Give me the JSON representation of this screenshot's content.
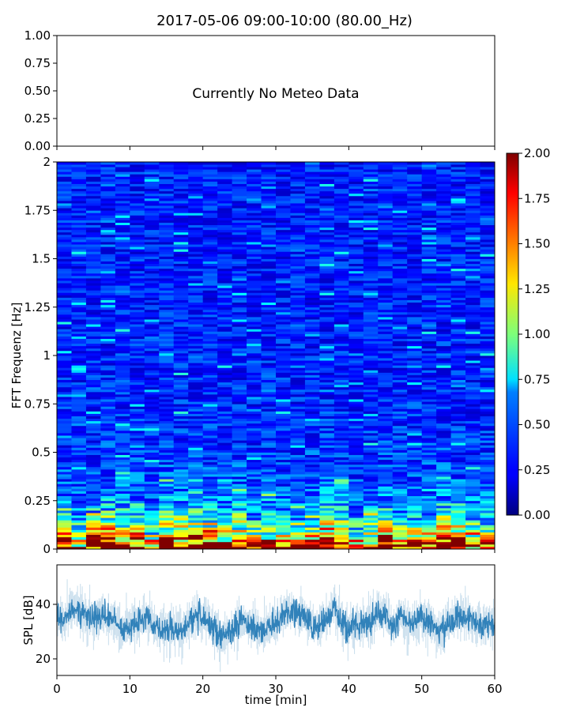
{
  "chart_data": [
    {
      "type": "line",
      "panel": "meteo",
      "title": "2017-05-06 09:00-10:00 (80.00_Hz)",
      "annotation": "Currently No Meteo Data",
      "ylim": [
        0,
        1
      ],
      "yticks": [
        "0.00",
        "0.25",
        "0.50",
        "0.75",
        "1.00"
      ],
      "xlim": [
        0,
        60
      ]
    },
    {
      "type": "heatmap",
      "panel": "spectrogram",
      "ylabel": "FFT Frequenz [Hz]",
      "ylim": [
        0,
        2
      ],
      "yticks": [
        "0",
        "0.25",
        "0.5",
        "0.75",
        "1",
        "1.25",
        "1.5",
        "1.75",
        "2"
      ],
      "xlim": [
        0,
        60
      ],
      "time_bins": 30,
      "freq_bins": 160,
      "colormap": "jet",
      "colorbar": {
        "range": [
          0,
          2
        ],
        "ticks": [
          "0.00",
          "0.25",
          "0.50",
          "0.75",
          "1.00",
          "1.25",
          "1.50",
          "1.75",
          "2.00"
        ]
      },
      "typical_level_high_freq": 0.3,
      "typical_level_low_freq": 2.0
    },
    {
      "type": "line",
      "panel": "spl",
      "xlabel": "time [min]",
      "ylabel": "SPL [dB]",
      "xlim": [
        0,
        60
      ],
      "ylim": [
        14,
        55
      ],
      "xticks": [
        "0",
        "10",
        "20",
        "30",
        "40",
        "50",
        "60"
      ],
      "yticks": [
        "20",
        "40"
      ],
      "color": "#1f77b4",
      "minute_means": [
        36,
        34,
        40,
        38,
        36,
        35,
        37,
        35,
        34,
        31,
        32,
        34,
        35,
        34,
        31,
        31,
        31,
        30,
        33,
        36,
        35,
        33,
        29,
        29,
        31,
        33,
        34,
        32,
        30,
        32,
        33,
        37,
        38,
        37,
        35,
        32,
        33,
        35,
        40,
        33,
        32,
        33,
        33,
        34,
        38,
        37,
        31,
        36,
        34,
        33,
        37,
        34,
        30,
        32,
        35,
        36,
        35,
        34,
        32,
        33,
        34
      ]
    }
  ]
}
